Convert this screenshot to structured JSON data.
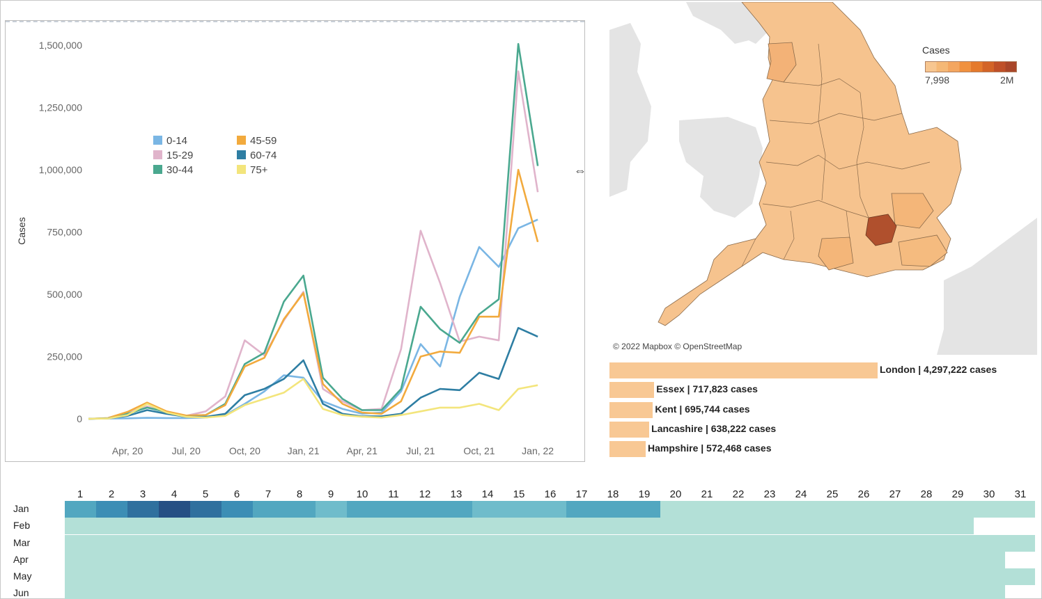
{
  "chart_data": [
    {
      "type": "line",
      "ylabel": "Cases",
      "ylim": [
        0,
        1550000
      ],
      "yticks": [
        0,
        250000,
        500000,
        750000,
        1000000,
        1250000,
        1500000
      ],
      "ytick_labels": [
        "0",
        "250,000",
        "500,000",
        "750,000",
        "1,000,000",
        "1,250,000",
        "1,500,000"
      ],
      "x": [
        "2020-02",
        "2020-03",
        "2020-04",
        "2020-05",
        "2020-06",
        "2020-07",
        "2020-08",
        "2020-09",
        "2020-10",
        "2020-11",
        "2020-12",
        "2021-01",
        "2021-02",
        "2021-03",
        "2021-04",
        "2021-05",
        "2021-06",
        "2021-07",
        "2021-08",
        "2021-09",
        "2021-10",
        "2021-11",
        "2021-12",
        "2022-01"
      ],
      "xtick_labels": [
        {
          "x": "2020-04",
          "label": "Apr, 20"
        },
        {
          "x": "2020-07",
          "label": "Jul, 20"
        },
        {
          "x": "2020-10",
          "label": "Oct, 20"
        },
        {
          "x": "2021-01",
          "label": "Jan, 21"
        },
        {
          "x": "2021-04",
          "label": "Apr, 21"
        },
        {
          "x": "2021-07",
          "label": "Jul, 21"
        },
        {
          "x": "2021-10",
          "label": "Oct, 21"
        },
        {
          "x": "2022-01",
          "label": "Jan, 22"
        }
      ],
      "legend_placement": "top-left",
      "series": [
        {
          "name": "0-14",
          "color": "#7ab6e4",
          "values": [
            0,
            1000,
            2000,
            4000,
            3000,
            3000,
            5000,
            15000,
            60000,
            110000,
            175000,
            165000,
            70000,
            40000,
            20000,
            25000,
            110000,
            300000,
            210000,
            490000,
            690000,
            610000,
            765000,
            800000
          ]
        },
        {
          "name": "15-29",
          "color": "#e0b4cb",
          "values": [
            0,
            2000,
            25000,
            50000,
            25000,
            12000,
            30000,
            90000,
            315000,
            255000,
            395000,
            510000,
            120000,
            70000,
            35000,
            40000,
            280000,
            755000,
            545000,
            310000,
            330000,
            315000,
            1395000,
            910000
          ]
        },
        {
          "name": "30-44",
          "color": "#4aa88f",
          "values": [
            0,
            2000,
            20000,
            45000,
            28000,
            12000,
            15000,
            60000,
            220000,
            265000,
            470000,
            575000,
            165000,
            80000,
            35000,
            35000,
            120000,
            450000,
            360000,
            305000,
            420000,
            480000,
            1505000,
            1015000
          ]
        },
        {
          "name": "45-59",
          "color": "#f2aa3d",
          "values": [
            0,
            3000,
            28000,
            65000,
            30000,
            13000,
            15000,
            55000,
            210000,
            245000,
            400000,
            505000,
            140000,
            60000,
            25000,
            20000,
            70000,
            250000,
            270000,
            265000,
            410000,
            410000,
            1000000,
            710000
          ]
        },
        {
          "name": "60-74",
          "color": "#2e7ea3",
          "values": [
            0,
            2000,
            12000,
            35000,
            20000,
            8000,
            8000,
            20000,
            95000,
            120000,
            160000,
            235000,
            60000,
            20000,
            10000,
            10000,
            20000,
            85000,
            120000,
            115000,
            185000,
            160000,
            365000,
            330000
          ]
        },
        {
          "name": "75+",
          "color": "#f3e57c",
          "values": [
            0,
            1000,
            15000,
            60000,
            25000,
            8000,
            5000,
            12000,
            55000,
            80000,
            105000,
            160000,
            40000,
            15000,
            8000,
            5000,
            15000,
            30000,
            45000,
            45000,
            60000,
            35000,
            120000,
            135000
          ]
        }
      ]
    },
    {
      "type": "bar",
      "orientation": "horizontal",
      "categories": [
        "London",
        "Essex",
        "Kent",
        "Lancashire",
        "Hampshire"
      ],
      "values": [
        4297222,
        717823,
        695744,
        638222,
        572468
      ],
      "labels": [
        "London | 4,297,222 cases",
        "Essex | 717,823 cases",
        "Kent | 695,744 cases",
        "Lancashire | 638,222 cases",
        "Hampshire | 572,468 cases"
      ],
      "color": "#f8c894"
    },
    {
      "type": "heatmap",
      "x_labels": [
        "1",
        "2",
        "3",
        "4",
        "5",
        "6",
        "7",
        "8",
        "9",
        "10",
        "11",
        "12",
        "13",
        "14",
        "15",
        "16",
        "17",
        "18",
        "19",
        "20",
        "21",
        "22",
        "23",
        "24",
        "25",
        "26",
        "27",
        "28",
        "29",
        "30",
        "31"
      ],
      "y_labels": [
        "Jan",
        "Feb",
        "Mar",
        "Apr",
        "May",
        "Jun"
      ],
      "days_in_month": [
        31,
        29,
        31,
        30,
        31,
        30
      ],
      "intensity": [
        [
          4,
          5,
          6,
          7,
          6,
          5,
          4,
          3.5,
          3,
          4,
          4,
          4,
          4,
          2.5,
          2.5,
          2.5,
          4,
          4,
          4,
          1,
          1,
          1,
          1,
          1,
          1,
          1,
          1,
          1,
          1,
          1,
          1
        ],
        [
          1.3,
          1.3,
          1.3,
          1.3,
          1.3,
          1.3,
          1.3,
          1.3,
          1.3,
          1.3,
          1.3,
          1.3,
          1,
          1,
          1.3,
          1.3,
          1,
          1,
          1,
          1,
          1,
          1,
          1,
          1,
          1,
          1,
          1,
          1,
          1
        ],
        [
          1,
          1,
          1,
          1,
          1,
          1,
          1,
          1,
          1,
          1,
          1,
          1,
          1,
          1,
          1,
          1,
          1,
          1,
          1,
          1,
          1,
          1,
          1,
          1,
          1,
          1,
          1,
          1,
          1,
          1,
          1
        ],
        [
          1,
          1,
          1,
          1,
          1,
          1,
          1,
          1,
          1,
          1,
          1,
          1,
          1,
          1,
          1,
          1,
          1,
          1,
          1,
          1,
          1,
          1,
          1,
          1,
          1,
          1,
          1,
          1,
          1,
          1
        ],
        [
          1,
          1,
          1,
          1,
          1,
          1,
          1,
          1,
          1,
          1,
          1,
          1,
          1,
          1,
          1,
          1,
          1,
          1,
          1,
          1,
          1,
          1,
          1,
          1,
          1,
          1,
          1,
          1,
          1,
          1,
          1
        ],
        [
          1,
          1,
          1,
          1,
          1,
          1,
          1,
          1,
          1,
          1,
          1,
          1,
          1,
          1,
          1,
          1.2,
          1,
          1,
          1,
          1,
          1,
          1,
          1,
          1,
          1,
          1,
          1,
          1,
          1,
          1
        ]
      ],
      "colors": [
        "#b3e0d7",
        "#a8d8d6",
        "#6fbccb",
        "#52a7c0",
        "#3c8eb5",
        "#2f709e",
        "#264f84"
      ]
    }
  ],
  "map": {
    "legend_title": "Cases",
    "legend_min": "7,998",
    "legend_max": "2M",
    "legend_colors": [
      "#f7c690",
      "#f5b876",
      "#f4a660",
      "#f0913f",
      "#e57a2c",
      "#d36427",
      "#bf5028",
      "#a94629"
    ],
    "attribution": "© 2022 Mapbox © OpenStreetMap",
    "land_color": "#f6c38e",
    "highlight_color": "#b0502d",
    "sea_color": "#ffffff",
    "other_land_color": "#e4e4e4"
  },
  "icons": {
    "resize": "resize-horizontal-icon"
  }
}
